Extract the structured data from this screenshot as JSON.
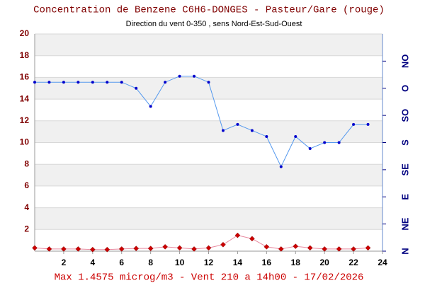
{
  "chart_data": {
    "type": "line",
    "title": "Concentration de Benzene C6H6-DONGES - Pasteur/Gare (rouge)",
    "subtitle": "Direction du vent 0-350 , sens Nord-Est-Sud-Ouest",
    "footer": "Max 1.4575 microg/m3 - Vent 210  a 14h00 - 17/02/2026",
    "x": [
      0,
      1,
      2,
      3,
      4,
      5,
      6,
      7,
      8,
      9,
      10,
      11,
      12,
      13,
      14,
      15,
      16,
      17,
      18,
      19,
      20,
      21,
      22,
      23
    ],
    "xlim": [
      0,
      24
    ],
    "xticks": [
      2,
      4,
      6,
      8,
      10,
      12,
      14,
      16,
      18,
      20,
      22,
      24
    ],
    "ylim": [
      0,
      20
    ],
    "yticks": [
      2,
      4,
      6,
      8,
      10,
      12,
      14,
      16,
      18,
      20
    ],
    "y2lim": [
      0,
      360
    ],
    "y2ticks": [
      {
        "value": 0,
        "label": "N"
      },
      {
        "value": 45,
        "label": "NE"
      },
      {
        "value": 90,
        "label": "E"
      },
      {
        "value": 135,
        "label": "SE"
      },
      {
        "value": 180,
        "label": "S"
      },
      {
        "value": 225,
        "label": "SO"
      },
      {
        "value": 270,
        "label": "O"
      },
      {
        "value": 315,
        "label": "NO"
      }
    ],
    "bands": true,
    "grid": true,
    "series": [
      {
        "name": "Benzene",
        "color": "#cc0000",
        "marker": "diamond",
        "values": [
          0.3,
          0.2,
          0.2,
          0.2,
          0.15,
          0.15,
          0.2,
          0.25,
          0.25,
          0.4,
          0.3,
          0.2,
          0.3,
          0.6,
          1.4575,
          1.15,
          0.4,
          0.2,
          0.45,
          0.3,
          0.2,
          0.2,
          0.2,
          0.3
        ]
      },
      {
        "name": "Vent",
        "color": "#0000cc",
        "marker": "dot",
        "axis": "y2",
        "values": [
          280,
          280,
          280,
          280,
          280,
          280,
          280,
          270,
          240,
          280,
          290,
          290,
          280,
          200,
          210,
          200,
          190,
          140,
          190,
          170,
          180,
          180,
          210,
          210
        ]
      }
    ]
  }
}
